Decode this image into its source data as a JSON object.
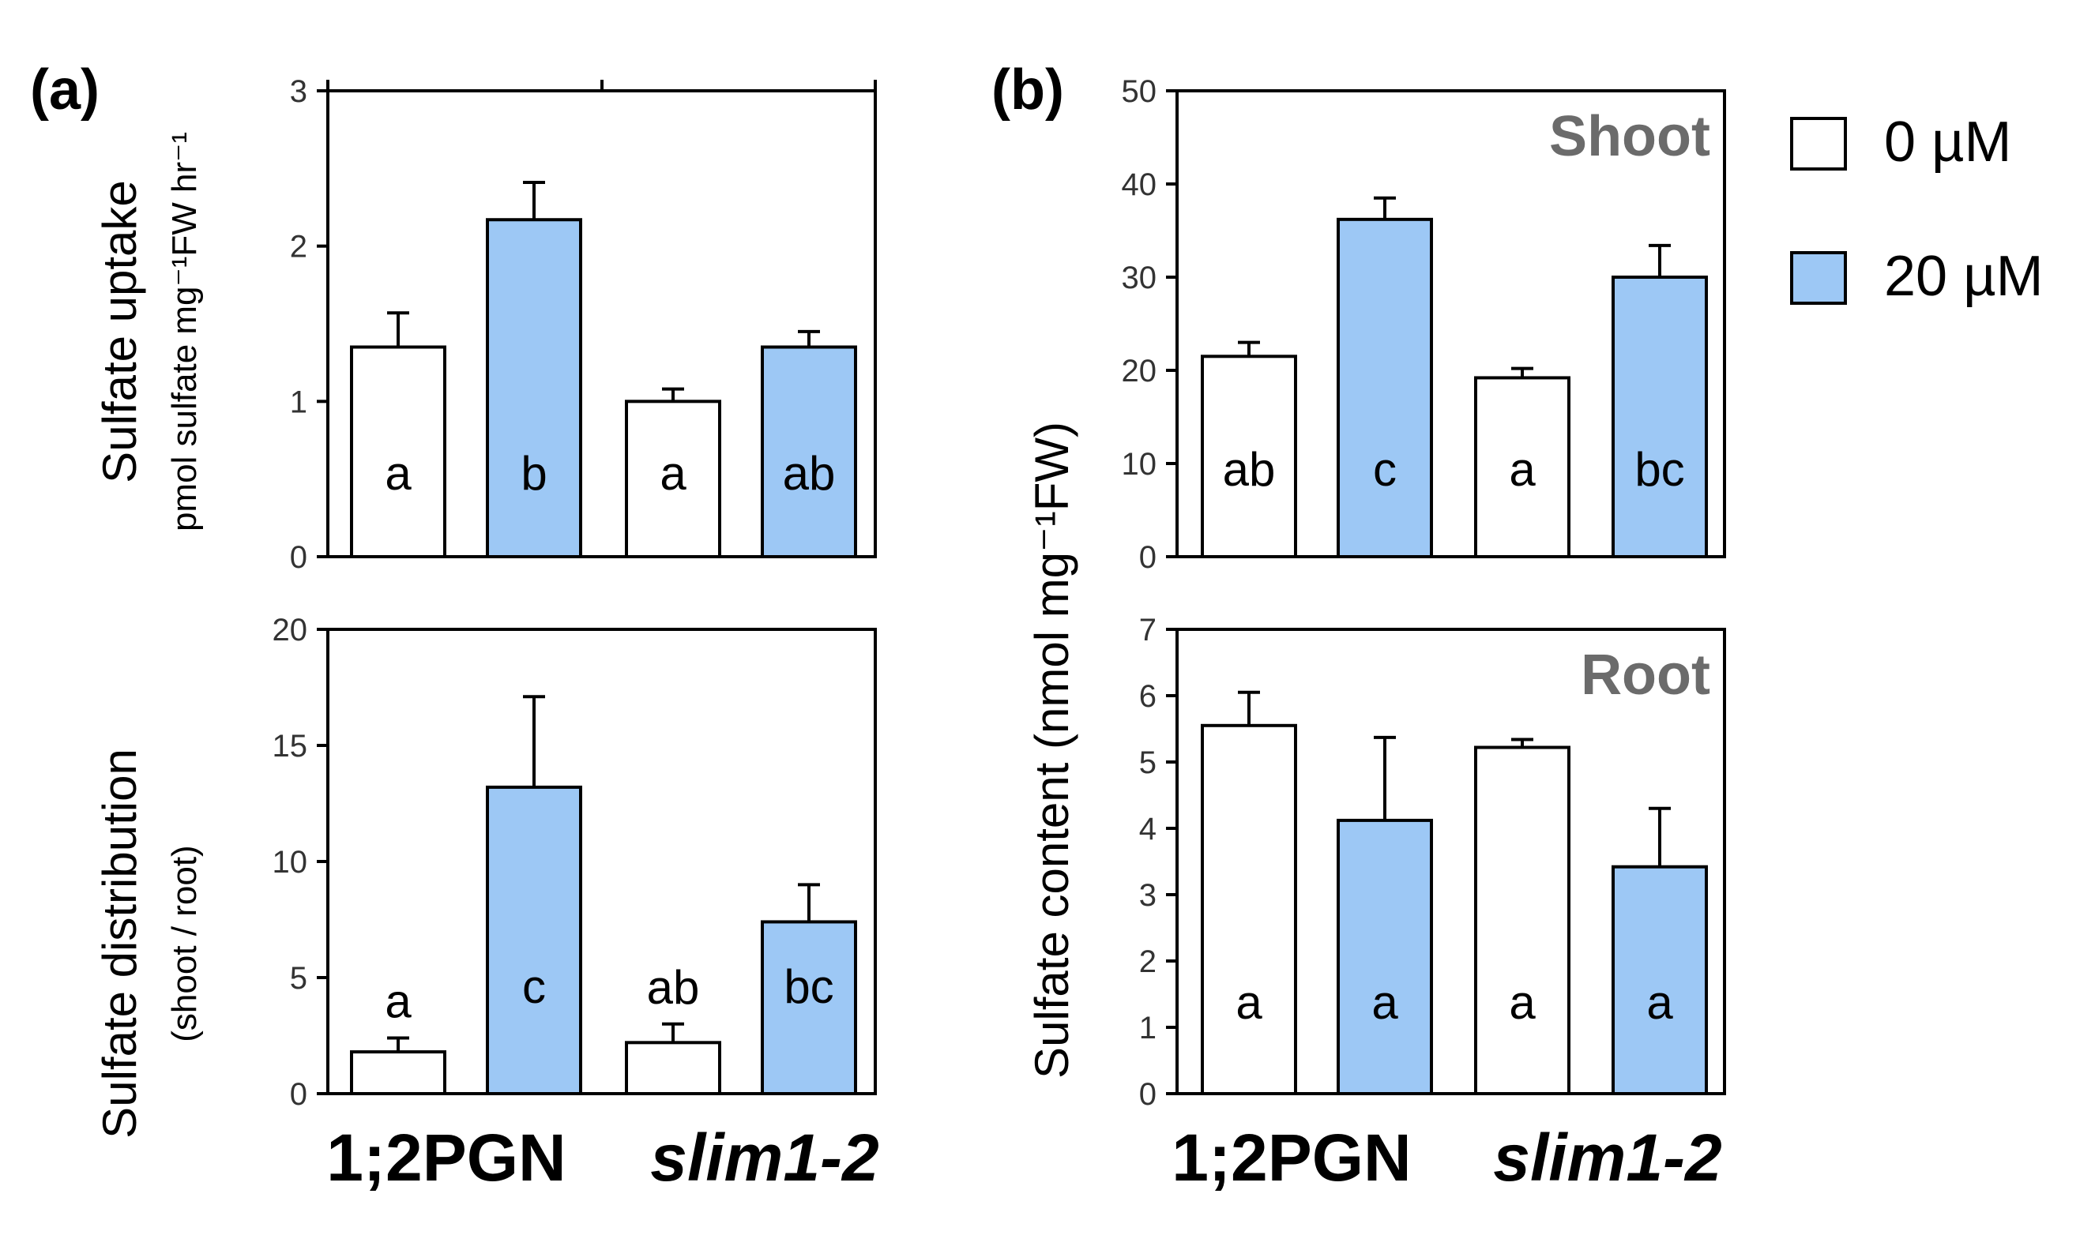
{
  "panels": {
    "a": "(a)",
    "b": "(b)"
  },
  "groups": [
    "1;2PGN",
    "slim1-2"
  ],
  "legend": [
    {
      "label": "0 µM",
      "color": "#ffffff"
    },
    {
      "label": "20 µM",
      "color": "#9dc8f5"
    }
  ],
  "ylabels": {
    "a_bottom_main": "Sulfate distribution",
    "a_bottom_sub": "(shoot / root)",
    "b_shared": "Sulfate content (nmol mg⁻¹FW)"
  },
  "chart_data": [
    {
      "id": "a_top",
      "type": "bar",
      "ylabel": "Sulfate uptake",
      "ylabel_sub": "pmol sulfate mg⁻¹FW hr⁻¹",
      "ylim": [
        0,
        3
      ],
      "yticks": [
        "0",
        "1",
        "2",
        "3"
      ],
      "tag": "",
      "series": [
        {
          "name": "0 µM",
          "color": "#ffffff",
          "values": [
            1.35,
            1.0
          ],
          "errors": [
            0.22,
            0.08
          ],
          "letters": [
            "a",
            "a"
          ]
        },
        {
          "name": "20 µM",
          "color": "#9dc8f5",
          "values": [
            2.17,
            1.35
          ],
          "errors": [
            0.24,
            0.1
          ],
          "letters": [
            "b",
            "ab"
          ]
        }
      ],
      "categories": [
        "1;2PGN",
        "slim1-2"
      ]
    },
    {
      "id": "a_bottom",
      "type": "bar",
      "ylim": [
        0,
        20
      ],
      "yticks": [
        "0",
        "5",
        "10",
        "15",
        "20"
      ],
      "tag": "",
      "series": [
        {
          "name": "0 µM",
          "color": "#ffffff",
          "values": [
            1.8,
            2.2
          ],
          "errors": [
            0.6,
            0.8
          ],
          "letters": [
            "a",
            "ab"
          ]
        },
        {
          "name": "20 µM",
          "color": "#9dc8f5",
          "values": [
            13.2,
            7.4
          ],
          "errors": [
            3.9,
            1.6
          ],
          "letters": [
            "c",
            "bc"
          ]
        }
      ],
      "categories": [
        "1;2PGN",
        "slim1-2"
      ]
    },
    {
      "id": "b_top",
      "type": "bar",
      "ylim": [
        0,
        50
      ],
      "yticks": [
        "0",
        "10",
        "20",
        "30",
        "40",
        "50"
      ],
      "tag": "Shoot",
      "series": [
        {
          "name": "0 µM",
          "color": "#ffffff",
          "values": [
            21.5,
            19.2
          ],
          "errors": [
            1.5,
            1.0
          ],
          "letters": [
            "ab",
            "a"
          ]
        },
        {
          "name": "20 µM",
          "color": "#9dc8f5",
          "values": [
            36.2,
            30.0
          ],
          "errors": [
            2.3,
            3.4
          ],
          "letters": [
            "c",
            "bc"
          ]
        }
      ],
      "categories": [
        "1;2PGN",
        "slim1-2"
      ]
    },
    {
      "id": "b_bottom",
      "type": "bar",
      "ylim": [
        0,
        7
      ],
      "yticks": [
        "0",
        "1",
        "2",
        "3",
        "4",
        "5",
        "6",
        "7"
      ],
      "tag": "Root",
      "series": [
        {
          "name": "0 µM",
          "color": "#ffffff",
          "values": [
            5.55,
            5.22
          ],
          "errors": [
            0.5,
            0.12
          ],
          "letters": [
            "a",
            "a"
          ]
        },
        {
          "name": "20 µM",
          "color": "#9dc8f5",
          "values": [
            4.12,
            3.42
          ],
          "errors": [
            1.25,
            0.88
          ],
          "letters": [
            "a",
            "a"
          ]
        }
      ],
      "categories": [
        "1;2PGN",
        "slim1-2"
      ]
    }
  ]
}
